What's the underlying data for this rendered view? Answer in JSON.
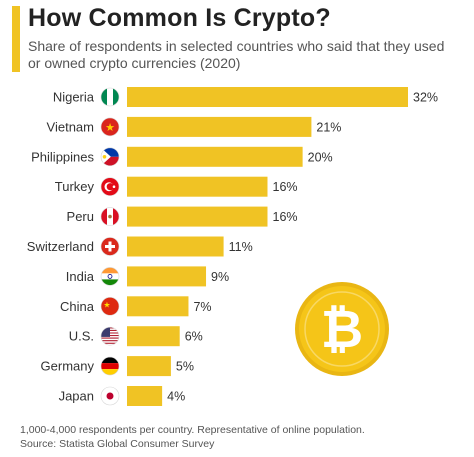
{
  "header": {
    "title": "How Common Is Crypto?",
    "subtitle": "Share of respondents in selected countries who said that they used or owned crypto currencies (2020)"
  },
  "chart_data": {
    "type": "bar",
    "orientation": "horizontal",
    "categories": [
      "Nigeria",
      "Vietnam",
      "Philippines",
      "Turkey",
      "Peru",
      "Switzerland",
      "India",
      "China",
      "U.S.",
      "Germany",
      "Japan"
    ],
    "values": [
      32,
      21,
      20,
      16,
      16,
      11,
      9,
      7,
      6,
      5,
      4
    ],
    "value_labels": [
      "32%",
      "21%",
      "20%",
      "16%",
      "16%",
      "11%",
      "9%",
      "7%",
      "6%",
      "5%",
      "4%"
    ],
    "unit": "%",
    "xlim": [
      0,
      32
    ],
    "bar_color": "#f0c324",
    "grid": false,
    "legend": "none"
  },
  "flags": [
    "nigeria-flag-icon",
    "vietnam-flag-icon",
    "philippines-flag-icon",
    "turkey-flag-icon",
    "peru-flag-icon",
    "switzerland-flag-icon",
    "india-flag-icon",
    "china-flag-icon",
    "us-flag-icon",
    "germany-flag-icon",
    "japan-flag-icon"
  ],
  "decoration": {
    "coin_icon": "bitcoin-coin-icon",
    "coin_color": "#f5c518"
  },
  "footer": {
    "note": "1,000-4,000 respondents per country. Representative of online population.",
    "source": "Source: Statista Global Consumer Survey"
  }
}
